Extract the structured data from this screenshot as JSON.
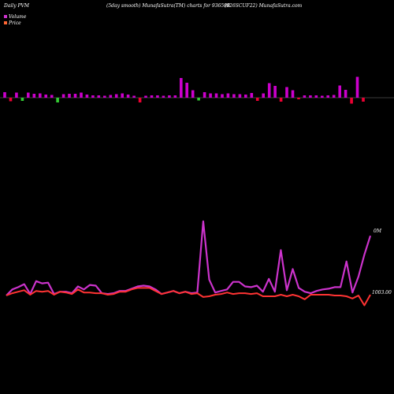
{
  "header": {
    "left": "Daily PVM",
    "center": "(5day smooth) MunafaSutra(TM) charts for 936598",
    "right": "(926SCUF22) MunafaSutra.com"
  },
  "legend": [
    {
      "label": "Volume",
      "color": "#cc33cc"
    },
    {
      "label": "Price",
      "color": "#ff6633"
    }
  ],
  "chart_data": [
    {
      "type": "bar",
      "title": "",
      "series": [
        {
          "name": "Volume",
          "colors": {
            "up": "#cc00cc",
            "down": "#ee0033",
            "neutral": "#33cc33"
          },
          "values": [
            1.4,
            -0.9,
            1.3,
            -0.8,
            1.3,
            1.0,
            1.1,
            0.8,
            0.7,
            -1.2,
            0.9,
            1.0,
            1.0,
            1.3,
            0.8,
            0.6,
            0.6,
            0.5,
            0.7,
            0.9,
            1.1,
            0.8,
            0.5,
            -1.2,
            0.5,
            0.6,
            0.6,
            0.5,
            0.6,
            0.6,
            5.0,
            3.8,
            1.9,
            -0.7,
            1.4,
            1.1,
            1.1,
            0.9,
            1.1,
            0.9,
            0.9,
            0.8,
            1.2,
            -0.8,
            1.1,
            3.7,
            3.0,
            -1.0,
            2.7,
            1.9,
            -0.4,
            0.6,
            0.6,
            0.6,
            0.5,
            0.6,
            0.7,
            3.1,
            2.0,
            -1.5,
            5.3,
            -1.0
          ]
        }
      ]
    },
    {
      "type": "line",
      "title": "",
      "x_count": 62,
      "y_labels": {
        "volume_end": "0M",
        "price_end": "1003.00"
      },
      "series": [
        {
          "name": "Volume",
          "color": "#cc33cc",
          "values": [
            0.0,
            0.8,
            1.1,
            1.5,
            0.2,
            1.9,
            1.6,
            1.7,
            0.2,
            0.5,
            0.5,
            0.3,
            1.2,
            0.8,
            1.4,
            1.3,
            0.3,
            0.2,
            0.3,
            0.6,
            0.6,
            0.9,
            1.2,
            1.3,
            1.2,
            0.8,
            0.2,
            0.4,
            0.6,
            0.3,
            0.5,
            0.3,
            0.4,
            9.8,
            2.1,
            0.4,
            0.6,
            0.8,
            1.8,
            1.8,
            1.2,
            1.1,
            1.3,
            0.5,
            2.2,
            0.5,
            6.0,
            0.7,
            3.5,
            1.0,
            0.5,
            0.3,
            0.6,
            0.8,
            0.9,
            1.1,
            1.1,
            4.5,
            0.4,
            2.5,
            5.4,
            7.9
          ]
        },
        {
          "name": "Price",
          "color": "#ff3333",
          "values": [
            0.0,
            0.3,
            0.5,
            0.7,
            0.1,
            0.6,
            0.5,
            0.6,
            0.1,
            0.5,
            0.4,
            0.2,
            0.8,
            0.4,
            0.4,
            0.3,
            0.3,
            0.1,
            0.2,
            0.5,
            0.5,
            0.8,
            1.0,
            1.0,
            1.0,
            0.6,
            0.2,
            0.4,
            0.6,
            0.3,
            0.5,
            0.2,
            0.3,
            -0.2,
            -0.1,
            0.1,
            0.2,
            0.4,
            0.2,
            0.3,
            0.3,
            0.2,
            0.3,
            -0.1,
            -0.1,
            -0.1,
            0.1,
            -0.1,
            0.1,
            -0.1,
            -0.5,
            0.1,
            0.1,
            0.1,
            0.1,
            0.0,
            0.0,
            -0.1,
            -0.4,
            0.0,
            -1.3,
            0.1
          ]
        }
      ]
    }
  ]
}
